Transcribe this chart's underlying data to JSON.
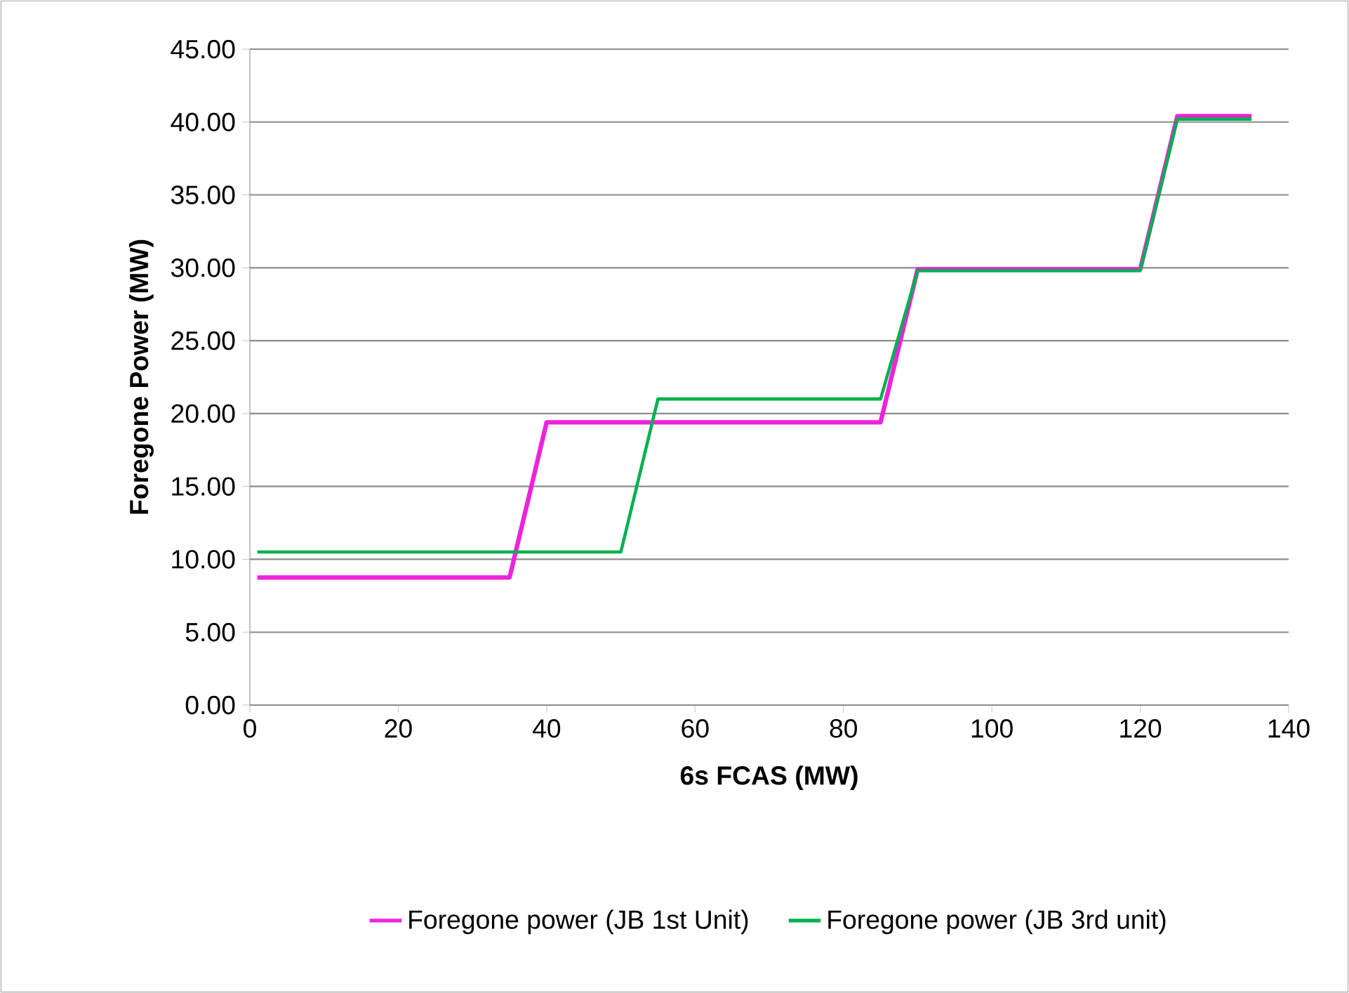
{
  "chart_data": {
    "type": "line",
    "xlabel": "6s FCAS (MW)",
    "ylabel": "Foregone Power (MW)",
    "xlim": [
      0,
      140
    ],
    "xticks": [
      0,
      20,
      40,
      60,
      80,
      100,
      120,
      140
    ],
    "ylim": [
      0,
      45
    ],
    "yticks": [
      {
        "value": 0,
        "label": "0.00"
      },
      {
        "value": 5,
        "label": "5.00"
      },
      {
        "value": 10,
        "label": "10.00"
      },
      {
        "value": 15,
        "label": "15.00"
      },
      {
        "value": 20,
        "label": "20.00"
      },
      {
        "value": 25,
        "label": "25.00"
      },
      {
        "value": 30,
        "label": "30.00"
      },
      {
        "value": 35,
        "label": "35.00"
      },
      {
        "value": 40,
        "label": "40.00"
      },
      {
        "value": 45,
        "label": "45.00"
      }
    ],
    "grid": "y",
    "legend": "bottom",
    "marker": "none",
    "line_style": "solid",
    "series": [
      {
        "name": "Foregone power (JB 1st Unit)",
        "color": "#ee22dd",
        "x": [
          1,
          35,
          40,
          85,
          90,
          120,
          125,
          135
        ],
        "values": [
          8.75,
          8.75,
          19.4,
          19.4,
          29.9,
          29.9,
          40.4,
          40.4
        ]
      },
      {
        "name": "Foregone power (JB 3rd unit)",
        "color": "#00b050",
        "x": [
          1,
          50,
          55,
          85,
          90,
          120,
          125,
          135
        ],
        "values": [
          10.5,
          10.5,
          21.0,
          21.0,
          29.8,
          29.8,
          40.2,
          40.2
        ]
      }
    ]
  }
}
